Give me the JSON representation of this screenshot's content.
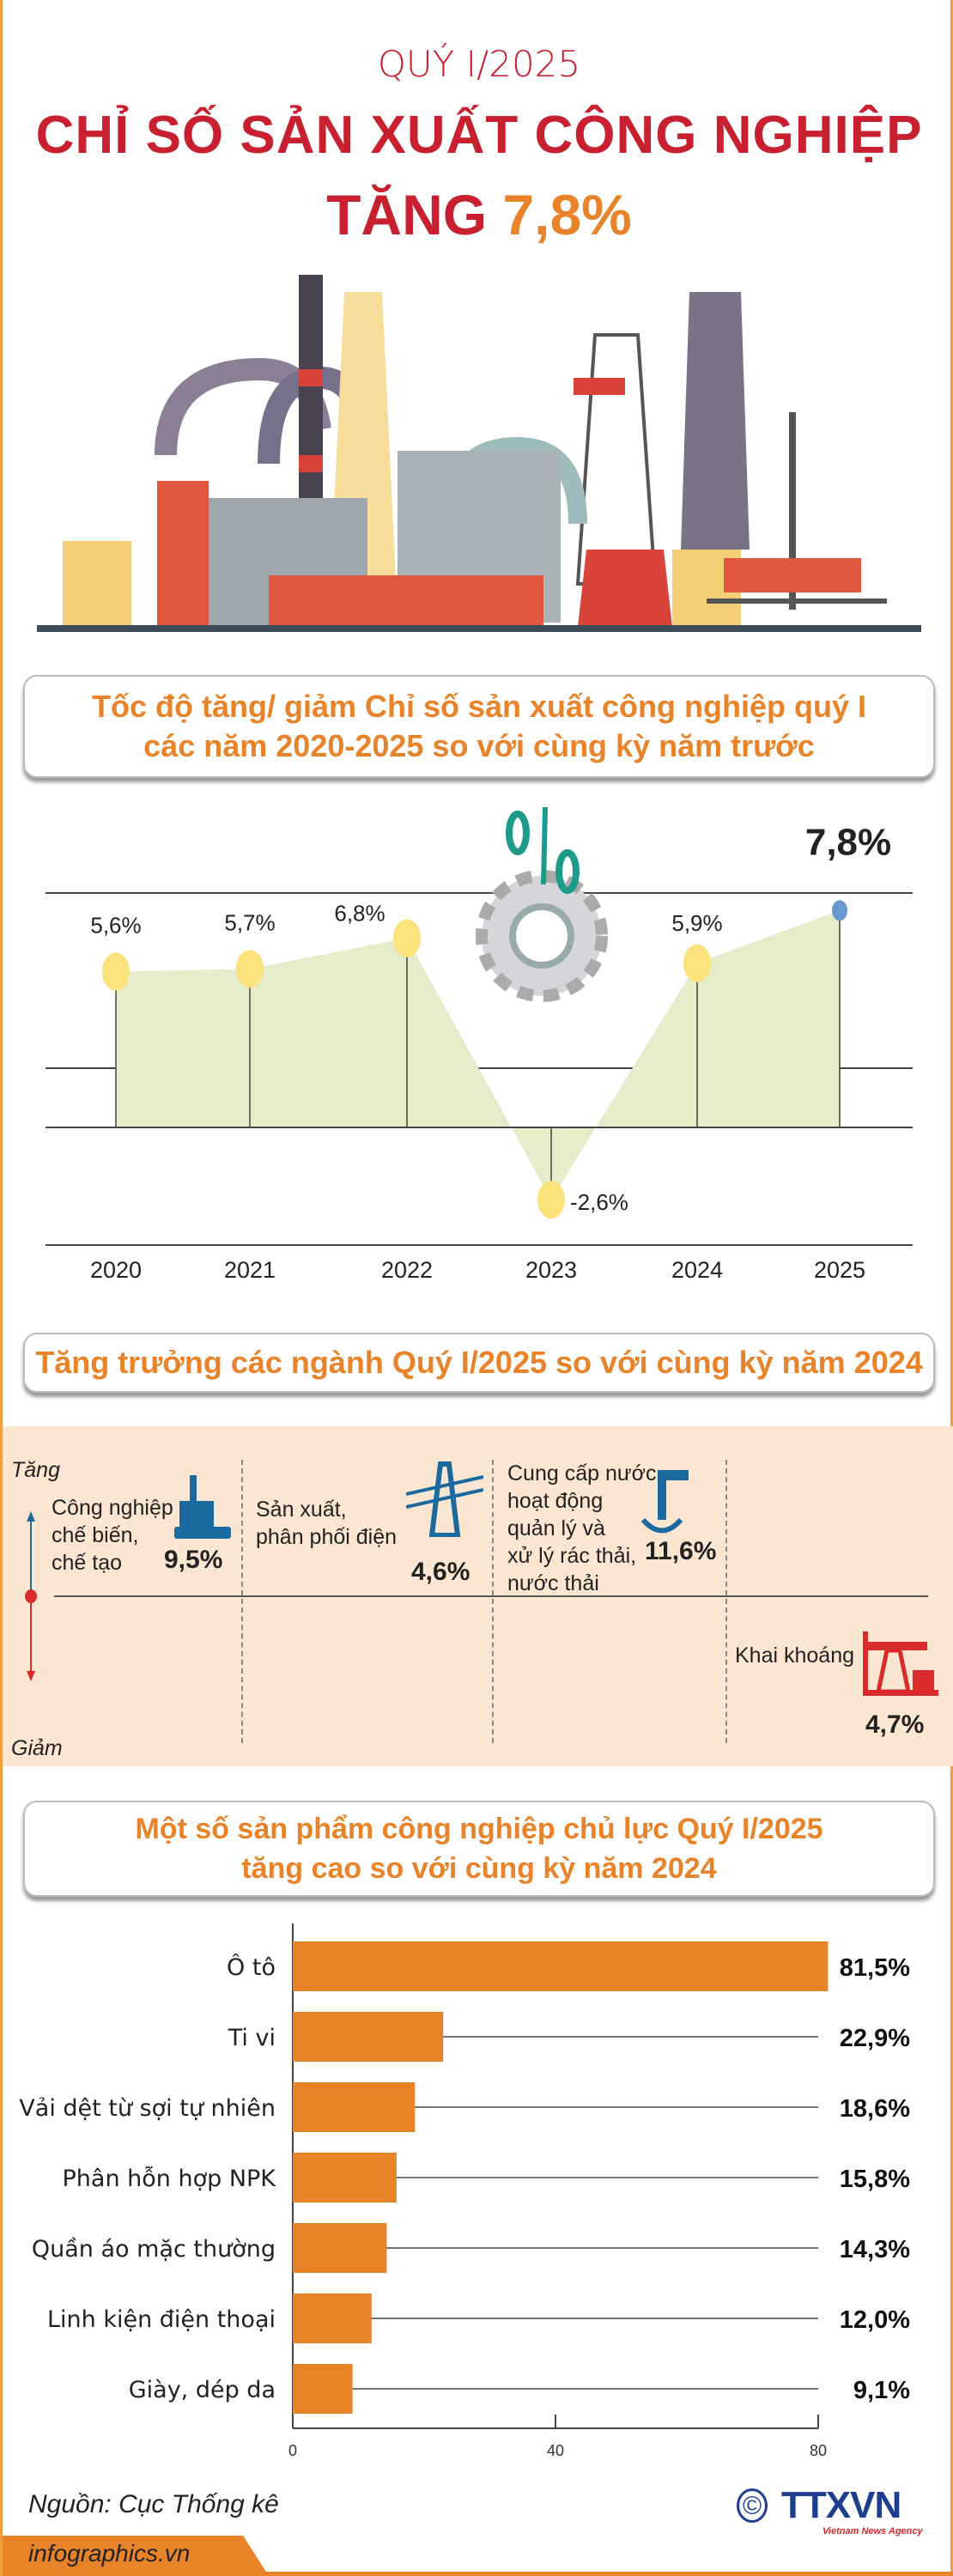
{
  "header": {
    "kicker": "QUÝ I/2025",
    "title": "CHỈ SỐ SẢN XUẤT CÔNG NGHIỆP",
    "sub_prefix": "TĂNG",
    "sub_value": "7,8%"
  },
  "colors": {
    "red": "#c8202f",
    "orange": "#e8832a",
    "area": "#e4ecc9",
    "point": "#fbe27a",
    "highlight": "#6a98d0",
    "peach": "#fbe6d1",
    "up_arrow": "#1a6aa0",
    "down_arrow": "#d92b2b"
  },
  "section1": {
    "title_line1": "Tốc độ tăng/ giảm Chỉ số sản xuất công nghiệp quý I",
    "title_line2": "các năm 2020-2025 so với cùng kỳ năm trước"
  },
  "section2": {
    "title": "Tăng trưởng các ngành Quý I/2025 so với cùng kỳ năm 2024",
    "up_label": "Tăng",
    "down_label": "Giảm",
    "sectors": [
      {
        "name_lines": [
          "Công nghiệp",
          "chế biến,",
          "chế tạo"
        ],
        "value": "9,5%",
        "direction": "up",
        "icon": "factory-icon"
      },
      {
        "name_lines": [
          "Sản xuất,",
          "phân phối điện"
        ],
        "value": "4,6%",
        "direction": "up",
        "icon": "power-tower-icon"
      },
      {
        "name_lines": [
          "Cung cấp nước,",
          "hoạt động",
          "quản lý và",
          "xử lý rác thải,",
          "nước thải"
        ],
        "value": "11,6%",
        "direction": "up",
        "icon": "water-tap-icon"
      },
      {
        "name_lines": [
          "Khai khoáng"
        ],
        "value": "4,7%",
        "direction": "down",
        "icon": "oil-pump-icon"
      }
    ]
  },
  "section3": {
    "title_line1": "Một số sản phẩm công nghiệp chủ lực Quý I/2025",
    "title_line2": "tăng cao so với cùng kỳ năm 2024"
  },
  "chart_data": [
    {
      "type": "area",
      "categories": [
        "2020",
        "2021",
        "2022",
        "2023",
        "2024",
        "2025"
      ],
      "values": [
        5.6,
        5.7,
        6.8,
        -2.6,
        5.9,
        7.8
      ],
      "labels": [
        "5,6%",
        "5,7%",
        "6,8%",
        "-2,6%",
        "5,9%",
        "7,8%"
      ],
      "highlight": "2025",
      "grid": true
    },
    {
      "type": "bar",
      "orientation": "horizontal",
      "categories": [
        "Ô tô",
        "Ti vi",
        "Vải dệt từ sợi tự nhiên",
        "Phân hỗn hợp NPK",
        "Quần áo mặc thường",
        "Linh kiện điện thoại",
        "Giày, dép da"
      ],
      "values": [
        81.5,
        22.9,
        18.6,
        15.8,
        14.3,
        12.0,
        9.1
      ],
      "labels": [
        "81,5%",
        "22,9%",
        "18,6%",
        "15,8%",
        "14,3%",
        "12,0%",
        "9,1%"
      ],
      "xticks": [
        "0",
        "40",
        "80"
      ],
      "xlim": [
        0,
        80
      ]
    }
  ],
  "footer": {
    "source": "Nguồn: Cục Thống kê",
    "site": "infographics.vn",
    "logo": "TTXVN",
    "logo_sub": "Vietnam News Agency"
  }
}
